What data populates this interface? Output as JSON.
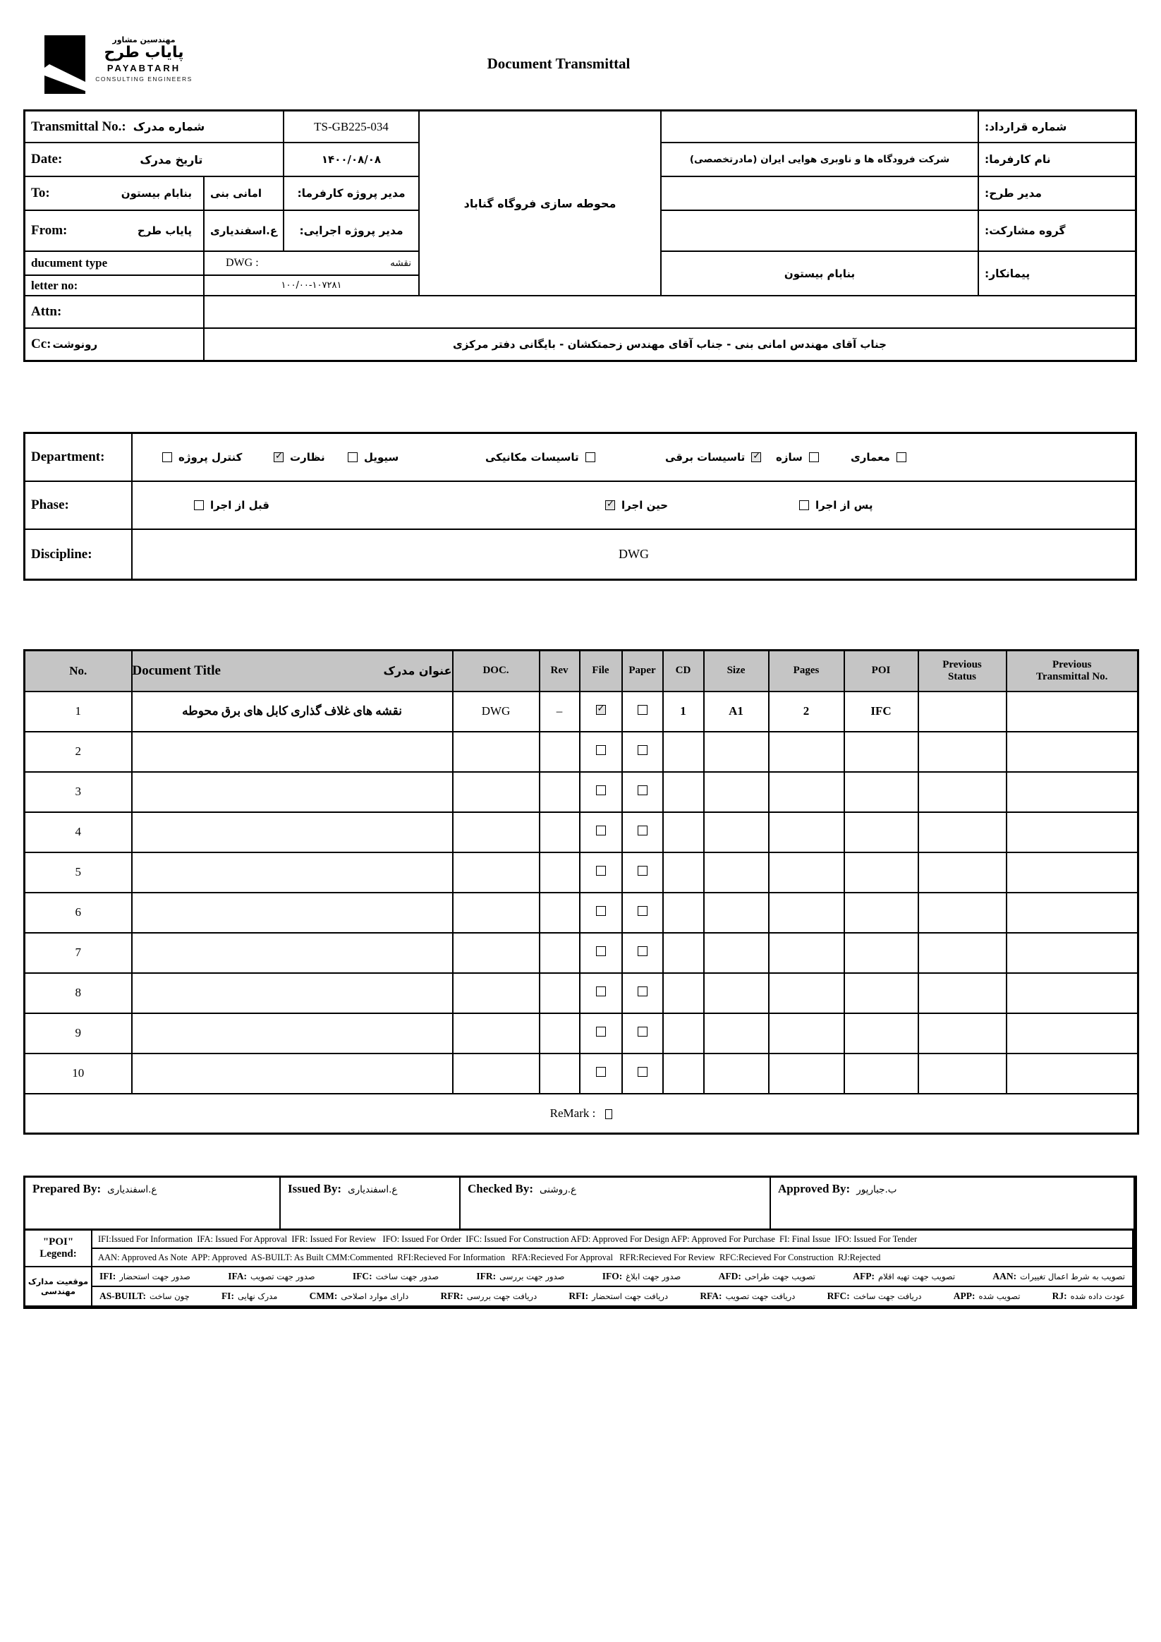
{
  "page": {
    "title": "Document Transmittal"
  },
  "brand": {
    "fa_top": "مهندسین مشاور",
    "fa_main": "پایاب طرح",
    "en_main": "PAYABTARH",
    "en_sub": "CONSULTING ENGINEERS"
  },
  "info": {
    "transmittal_no_label_en": "Transmittal No.:",
    "transmittal_no_label_fa": "شماره مدرک",
    "transmittal_no_value": "TS-GB225-034",
    "date_label_en": "Date:",
    "date_label_fa": "تاریخ مدرک",
    "date_value": "۱۴۰۰/۰۸/۰۸",
    "to_label": "To:",
    "to_value": "بنابام بیستون",
    "client_pm_value": "امانی بنی",
    "client_pm_label": "مدیر پروژه کارفرما:",
    "from_label": "From:",
    "from_value": "پایاب طرح",
    "exec_pm_value": "ع.اسفندیاری",
    "exec_pm_label": "مدیر پروژه اجرایی:",
    "doc_type_label": "ducument type",
    "doc_type_value_en": "DWG  :",
    "doc_type_value_fa": "نقشه",
    "letter_no_label": "letter no:",
    "letter_no_value": "۱۰۰/۰۰-۱۰۷۲۸۱",
    "attn_label": "Attn:",
    "attn_value": "",
    "cc_label_en": "Cc:",
    "cc_label_fa": "رونوشت",
    "cc_value": "جناب آقای مهندس امانی بنی  - جناب آقای مهندس زحمتکشان - بایگانی دفتر مرکزی",
    "project_title": "محوطه سازی فروگاه گناباد",
    "contract_no_label": "شماره قرارداد:",
    "contract_no_value": "",
    "client_name_label": "نام کارفرما:",
    "client_name_value": "شرکت فرودگاه ها و ناوبری هوایی ایران (مادرتخصصی)",
    "plan_manager_label": "مدیر طرح:",
    "plan_manager_value": "",
    "partnership_label": "گروه مشارکت:",
    "partnership_value": "",
    "contractor_label": "پیمانکار:",
    "contractor_value": "بنابام بیستون"
  },
  "classification": {
    "department_label": "Department:",
    "phase_label": "Phase:",
    "discipline_label": "Discipline:",
    "discipline_value": "DWG",
    "department_options": [
      {
        "label": "کنترل پروژه",
        "checked": false
      },
      {
        "label": "نظارت",
        "checked": true
      },
      {
        "label": "سیویل",
        "checked": false
      },
      {
        "label": "تاسیسات مکانیکی",
        "checked": false
      },
      {
        "label": "تاسیسات برقی",
        "checked": true
      },
      {
        "label": "سازه",
        "checked": false
      },
      {
        "label": "معماری",
        "checked": false
      }
    ],
    "phase_options": [
      {
        "label": "قبل از اجرا",
        "checked": false
      },
      {
        "label": "حین اجرا",
        "checked": true
      },
      {
        "label": "پس از اجرا",
        "checked": false
      }
    ]
  },
  "doc_table": {
    "headers": {
      "no": "No.",
      "title_en": "Document Title",
      "title_fa": "عنوان مدرک",
      "doc": "DOC.",
      "rev": "Rev",
      "file": "File",
      "paper": "Paper",
      "cd": "CD",
      "size": "Size",
      "pages": "Pages",
      "poi": "POI",
      "prev_status": "Previous Status",
      "prev_transmittal": "Previous Transmittal No."
    },
    "rows": [
      {
        "no": "1",
        "title": "نقشه های غلاف گذاری کابل های برق محوطه",
        "doc": "DWG",
        "rev": "–",
        "file": true,
        "paper": false,
        "cd": "1",
        "size": "A1",
        "pages": "2",
        "poi": "IFC",
        "prev_status": "",
        "prev_transmittal": ""
      },
      {
        "no": "2",
        "title": "",
        "doc": "",
        "rev": "",
        "file": false,
        "paper": false,
        "cd": "",
        "size": "",
        "pages": "",
        "poi": "",
        "prev_status": "",
        "prev_transmittal": ""
      },
      {
        "no": "3",
        "title": "",
        "doc": "",
        "rev": "",
        "file": false,
        "paper": false,
        "cd": "",
        "size": "",
        "pages": "",
        "poi": "",
        "prev_status": "",
        "prev_transmittal": ""
      },
      {
        "no": "4",
        "title": "",
        "doc": "",
        "rev": "",
        "file": false,
        "paper": false,
        "cd": "",
        "size": "",
        "pages": "",
        "poi": "",
        "prev_status": "",
        "prev_transmittal": ""
      },
      {
        "no": "5",
        "title": "",
        "doc": "",
        "rev": "",
        "file": false,
        "paper": false,
        "cd": "",
        "size": "",
        "pages": "",
        "poi": "",
        "prev_status": "",
        "prev_transmittal": ""
      },
      {
        "no": "6",
        "title": "",
        "doc": "",
        "rev": "",
        "file": false,
        "paper": false,
        "cd": "",
        "size": "",
        "pages": "",
        "poi": "",
        "prev_status": "",
        "prev_transmittal": ""
      },
      {
        "no": "7",
        "title": "",
        "doc": "",
        "rev": "",
        "file": false,
        "paper": false,
        "cd": "",
        "size": "",
        "pages": "",
        "poi": "",
        "prev_status": "",
        "prev_transmittal": ""
      },
      {
        "no": "8",
        "title": "",
        "doc": "",
        "rev": "",
        "file": false,
        "paper": false,
        "cd": "",
        "size": "",
        "pages": "",
        "poi": "",
        "prev_status": "",
        "prev_transmittal": ""
      },
      {
        "no": "9",
        "title": "",
        "doc": "",
        "rev": "",
        "file": false,
        "paper": false,
        "cd": "",
        "size": "",
        "pages": "",
        "poi": "",
        "prev_status": "",
        "prev_transmittal": ""
      },
      {
        "no": "10",
        "title": "",
        "doc": "",
        "rev": "",
        "file": false,
        "paper": false,
        "cd": "",
        "size": "",
        "pages": "",
        "poi": "",
        "prev_status": "",
        "prev_transmittal": ""
      }
    ],
    "remark_label": "ReMark :"
  },
  "signatures": {
    "prepared_label": "Prepared By:",
    "prepared_value": "ع.اسفندیاری",
    "issued_label": "Issued By:",
    "issued_value": "ع.اسفندیاری",
    "checked_label": "Checked By:",
    "checked_value": "ع.روشنی",
    "approved_label": "Approved By:",
    "approved_value": "ب.جبارپور"
  },
  "legend": {
    "poi_label": "\"POI\" Legend:",
    "en_line1": "IFI:Issued For Information  IFA: Issued For Approval  IFR: Issued For Review   IFO: Issued For Order  IFC: Issued For Construction AFD: Approved For Design AFP: Approved For Purchase  FI: Final Issue  IFO: Issued For Tender",
    "en_line2": "AAN: Approved As Note  APP: Approved  AS-BUILT: As Built CMM:Commented  RFI:Recieved For Information   RFA:Recieved For Approval   RFR:Recieved For Review  RFC:Recieved For Construction  RJ:Rejected",
    "fa_label": "موقعیت مدارک مهندسی",
    "fa_line1": [
      {
        "a": "IFI",
        "t": "صدور جهت استحضار"
      },
      {
        "a": "IFA",
        "t": "صدور جهت تصویب"
      },
      {
        "a": "IFC",
        "t": "صدور جهت ساخت"
      },
      {
        "a": "IFR",
        "t": "صدور جهت بررسی"
      },
      {
        "a": "IFO",
        "t": "صدور جهت ابلاغ"
      },
      {
        "a": "AFD",
        "t": "تصویب جهت طراحی"
      },
      {
        "a": "AFP",
        "t": "تصویب جهت تهیه اقلام"
      },
      {
        "a": "AAN",
        "t": "تصویب به شرط اعمال تغییرات"
      }
    ],
    "fa_line2": [
      {
        "a": "AS-BUILT",
        "t": "چون ساخت"
      },
      {
        "a": "FI",
        "t": "مدرک نهایی"
      },
      {
        "a": "CMM",
        "t": "دارای موارد اصلاحی"
      },
      {
        "a": "RFR",
        "t": "دریافت جهت بررسی"
      },
      {
        "a": "RFI",
        "t": "دریافت جهت استحضار"
      },
      {
        "a": "RFA",
        "t": "دریافت جهت تصویب"
      },
      {
        "a": "RFC",
        "t": "دریافت جهت ساخت"
      },
      {
        "a": "APP",
        "t": "تصویب شده"
      },
      {
        "a": "RJ",
        "t": "عودت داده شده"
      }
    ]
  }
}
